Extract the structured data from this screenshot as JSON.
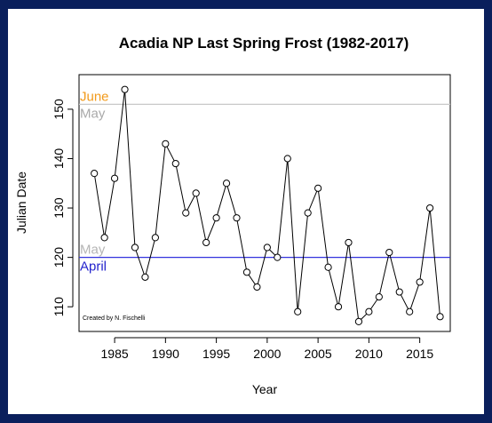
{
  "chart_data": {
    "type": "line",
    "title": "Acadia NP Last Spring Frost (1982-2017)",
    "xlabel": "Year",
    "ylabel": "Julian Date",
    "xlim": [
      1981.5,
      2018
    ],
    "ylim": [
      105,
      157
    ],
    "x_ticks": [
      1985,
      1990,
      1995,
      2000,
      2005,
      2010,
      2015
    ],
    "y_ticks": [
      110,
      120,
      130,
      140,
      150
    ],
    "series": [
      {
        "name": "Last spring frost",
        "x": [
          1983,
          1984,
          1985,
          1986,
          1987,
          1988,
          1989,
          1990,
          1991,
          1992,
          1993,
          1994,
          1995,
          1996,
          1997,
          1998,
          1999,
          2000,
          2001,
          2002,
          2003,
          2004,
          2005,
          2006,
          2007,
          2008,
          2009,
          2010,
          2011,
          2012,
          2013,
          2014,
          2015,
          2016,
          2017
        ],
        "values": [
          137,
          124,
          136,
          154,
          122,
          116,
          124,
          143,
          139,
          129,
          133,
          123,
          128,
          135,
          128,
          117,
          114,
          122,
          120,
          140,
          109,
          129,
          134,
          118,
          110,
          123,
          107,
          109,
          112,
          121,
          113,
          109,
          115,
          130,
          108
        ]
      }
    ],
    "reference_lines": [
      {
        "value": 151,
        "color": "#c8c8c8",
        "label_above": "June",
        "label_above_color": "#f29a1a",
        "label_below": "May",
        "label_below_color": "#a9a9a9"
      },
      {
        "value": 120,
        "color": "#3333dd",
        "label_above": "May",
        "label_above_color": "#b5b5b5",
        "label_below": "April",
        "label_below_color": "#2222cc"
      }
    ],
    "annotation": "Created by N. Fischelli"
  }
}
